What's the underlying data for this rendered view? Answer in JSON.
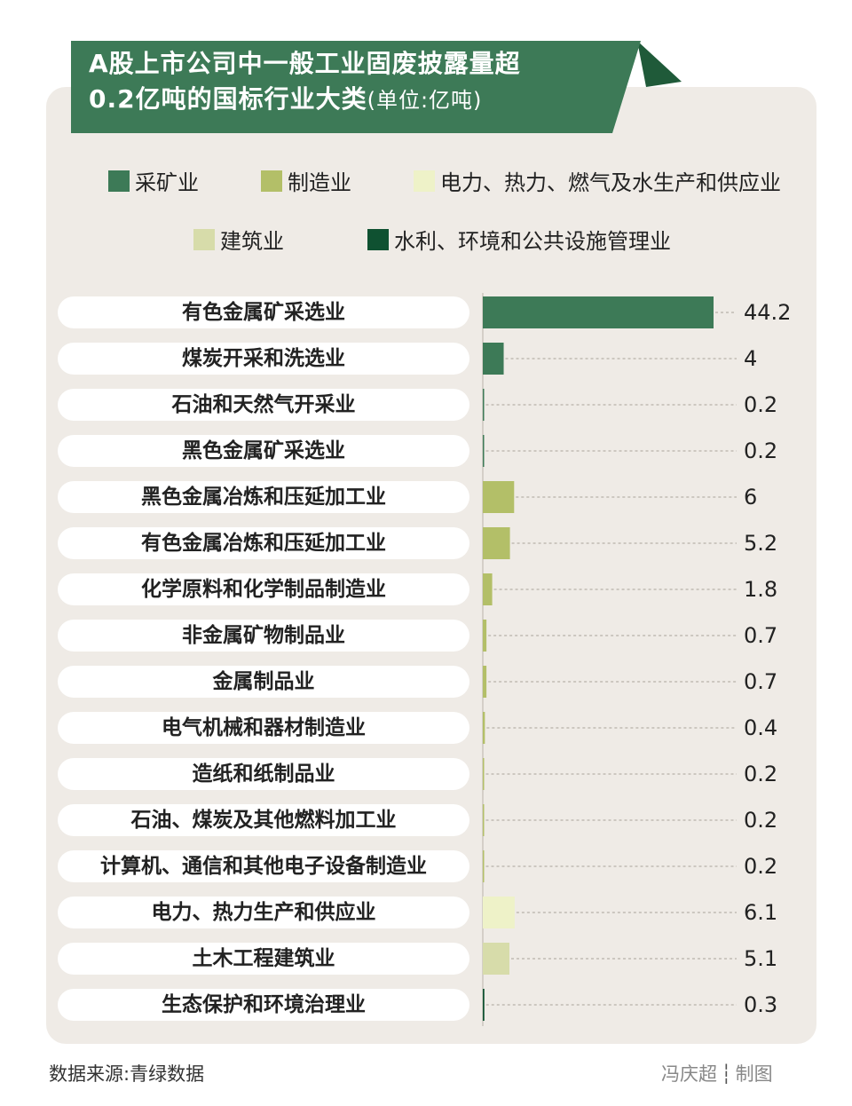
{
  "title_line1": "A股上市公司中一般工业固废披露量超",
  "title_line2": "0.2亿吨的国标行业大类",
  "title_unit": "(单位:亿吨)",
  "legend": [
    {
      "label": "采矿业",
      "color": "#3d7a57"
    },
    {
      "label": "制造业",
      "color": "#b3bf68"
    },
    {
      "label": "电力、热力、燃气及水生产和供应业",
      "color": "#eef2c8"
    },
    {
      "label": "建筑业",
      "color": "#d7dcaa"
    },
    {
      "label": "水利、环境和公共设施管理业",
      "color": "#0f5131"
    }
  ],
  "chart_data": {
    "type": "bar",
    "orientation": "horizontal",
    "title": "A股上市公司中一般工业固废披露量超0.2亿吨的国标行业大类",
    "unit": "亿吨",
    "categories": [
      "有色金属矿采选业",
      "煤炭开采和洗选业",
      "石油和天然气开采业",
      "黑色金属矿采选业",
      "黑色金属冶炼和压延加工业",
      "有色金属冶炼和压延加工业",
      "化学原料和化学制品制造业",
      "非金属矿物制品业",
      "金属制品业",
      "电气机械和器材制造业",
      "造纸和纸制品业",
      "石油、煤炭及其他燃料加工业",
      "计算机、通信和其他电子设备制造业",
      "电力、热力生产和供应业",
      "土木工程建筑业",
      "生态保护和环境治理业"
    ],
    "values": [
      44.2,
      4,
      0.2,
      0.2,
      6,
      5.2,
      1.8,
      0.7,
      0.7,
      0.4,
      0.2,
      0.2,
      0.2,
      6.1,
      5.1,
      0.3
    ],
    "value_labels": [
      "44.2",
      "4",
      "0.2",
      "0.2",
      "6",
      "5.2",
      "1.8",
      "0.7",
      "0.7",
      "0.4",
      "0.2",
      "0.2",
      "0.2",
      "6.1",
      "5.1",
      "0.3"
    ],
    "groups": [
      0,
      0,
      0,
      0,
      1,
      1,
      1,
      1,
      1,
      1,
      1,
      1,
      1,
      2,
      3,
      4
    ],
    "xlim": [
      0,
      44.2
    ],
    "grid": false,
    "legend_position": "top"
  },
  "footer": {
    "source": "数据来源:青绿数据",
    "author": "冯庆超",
    "separator": "┆",
    "made": "制图"
  }
}
